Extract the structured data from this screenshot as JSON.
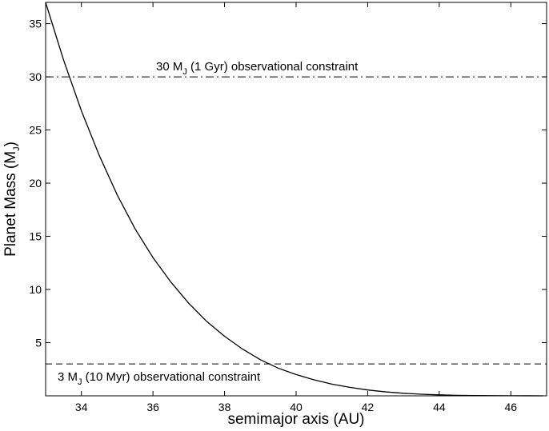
{
  "chart_data": {
    "type": "line",
    "title": "",
    "xlabel": "semimajor axis (AU)",
    "ylabel": {
      "text": "Planet Mass (M",
      "subscript": "J",
      "close": ")"
    },
    "xlim": [
      33,
      47
    ],
    "ylim": [
      0,
      37
    ],
    "xticks": [
      34,
      36,
      38,
      40,
      42,
      44,
      46
    ],
    "yticks": [
      5,
      10,
      15,
      20,
      25,
      30,
      35
    ],
    "grid": false,
    "series": [
      {
        "style": "solid",
        "color": "#000000",
        "x": [
          33.0,
          33.5,
          34.0,
          34.5,
          35.0,
          35.5,
          36.0,
          36.5,
          37.0,
          37.5,
          38.0,
          38.5,
          39.0,
          39.5,
          40.0,
          40.5,
          41.0,
          41.5,
          42.0,
          42.5,
          43.0,
          43.5,
          44.0,
          44.5,
          45.0,
          45.5,
          46.0,
          46.5,
          46.9
        ],
        "y": [
          37.0,
          31.6,
          26.8,
          22.6,
          18.9,
          15.7,
          13.0,
          10.7,
          8.7,
          7.0,
          5.6,
          4.4,
          3.4,
          2.6,
          2.0,
          1.5,
          1.1,
          0.8,
          0.55,
          0.37,
          0.24,
          0.15,
          0.09,
          0.05,
          0.03,
          0.015,
          0.007,
          0.003,
          0.0
        ]
      }
    ],
    "constraints": [
      {
        "y": 30,
        "style": "dashdot",
        "label": {
          "pre": "30 M",
          "sub": "J",
          "post": " (1 Gyr) observational constraint"
        }
      },
      {
        "y": 3,
        "style": "dashed",
        "label": {
          "pre": "3 M",
          "sub": "J",
          "post": " (10 Myr) observational constraint"
        }
      }
    ]
  }
}
